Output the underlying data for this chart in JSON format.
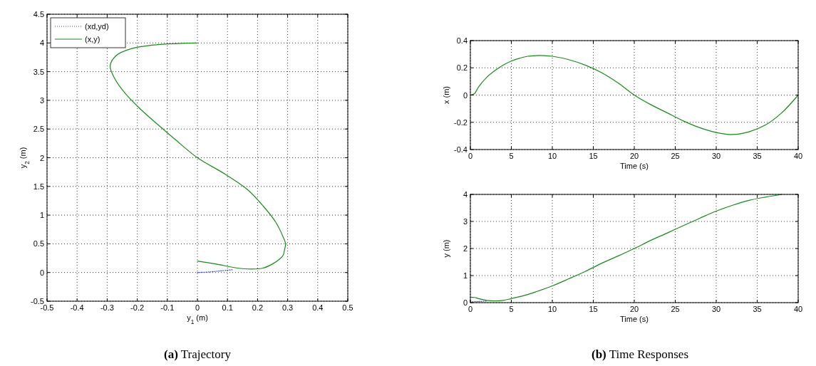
{
  "chart_data": [
    {
      "type": "line",
      "xlabel": "y$_{1}$ (m)",
      "ylabel": "y$_{2}$ (m)",
      "xlim": [
        -0.5,
        0.5
      ],
      "ylim": [
        -0.5,
        4.5
      ],
      "xticks": [
        -0.5,
        -0.4,
        -0.3,
        -0.2,
        -0.1,
        0,
        0.1,
        0.2,
        0.3,
        0.4,
        0.5
      ],
      "yticks": [
        -0.5,
        0,
        0.5,
        1,
        1.5,
        2,
        2.5,
        3,
        3.5,
        4,
        4.5
      ],
      "grid": true,
      "legend": "top left",
      "annotations": [
        "(a) Trajectory"
      ],
      "series": [
        {
          "name": "(xd,yd)",
          "color": "#3a3ad0",
          "line_style": "dotted",
          "x": [
            0,
            0.04,
            0.08,
            0.12
          ],
          "values": [
            0,
            0.01,
            0.03,
            0.05
          ]
        },
        {
          "name": "(x,y)",
          "color": "#1a8a1a",
          "line_style": "solid",
          "x": [
            0,
            0.06,
            0.13,
            0.18,
            0.22,
            0.25,
            0.27,
            0.285,
            0.29,
            0.293,
            0.285,
            0.26,
            0.22,
            0.165,
            0.09,
            0,
            -0.07,
            -0.13,
            -0.19,
            -0.24,
            -0.275,
            -0.29,
            -0.27,
            -0.22,
            -0.13,
            0
          ],
          "values": [
            0.2,
            0.15,
            0.08,
            0.06,
            0.08,
            0.15,
            0.22,
            0.3,
            0.4,
            0.5,
            0.62,
            0.88,
            1.15,
            1.45,
            1.72,
            2.0,
            2.3,
            2.57,
            2.85,
            3.12,
            3.38,
            3.6,
            3.78,
            3.9,
            3.97,
            4.0
          ]
        }
      ]
    },
    {
      "type": "line",
      "xlabel": "Time (s)",
      "ylabel": "x (m)",
      "xlim": [
        0,
        40
      ],
      "ylim": [
        -0.4,
        0.4
      ],
      "xticks": [
        0,
        5,
        10,
        15,
        20,
        25,
        30,
        35,
        40
      ],
      "yticks": [
        -0.4,
        -0.2,
        0,
        0.2,
        0.4
      ],
      "grid": true,
      "series": [
        {
          "color": "#1a8a1a",
          "line_style": "solid",
          "x": [
            0,
            0.5,
            1,
            2,
            3,
            4,
            5,
            6,
            7,
            8,
            9,
            10,
            12,
            14,
            16,
            18,
            20,
            22,
            24,
            26,
            28,
            30,
            32,
            34,
            36,
            38,
            40
          ],
          "values": [
            0,
            0.01,
            0.06,
            0.13,
            0.18,
            0.22,
            0.25,
            0.27,
            0.285,
            0.29,
            0.29,
            0.285,
            0.26,
            0.22,
            0.165,
            0.09,
            0,
            -0.07,
            -0.13,
            -0.19,
            -0.24,
            -0.275,
            -0.29,
            -0.27,
            -0.22,
            -0.13,
            0
          ]
        }
      ]
    },
    {
      "type": "line",
      "xlabel": "Time (s)",
      "ylabel": "y (m)",
      "xlim": [
        0,
        40
      ],
      "ylim": [
        0,
        4
      ],
      "xticks": [
        0,
        5,
        10,
        15,
        20,
        25,
        30,
        35,
        40
      ],
      "yticks": [
        0,
        1,
        2,
        3,
        4
      ],
      "grid": true,
      "annotations": [
        "(b) Time Responses"
      ],
      "series": [
        {
          "color": "#3a3ad0",
          "line_style": "dotted",
          "x": [
            0,
            1,
            2
          ],
          "values": [
            0.03,
            0.04,
            0.06
          ]
        },
        {
          "color": "#1a8a1a",
          "line_style": "solid",
          "x": [
            0,
            0.5,
            1,
            2,
            3,
            4,
            5,
            6,
            7,
            8,
            10,
            12,
            14,
            16,
            18,
            20,
            22,
            24,
            26,
            28,
            30,
            32,
            34,
            36,
            38
          ],
          "values": [
            0.2,
            0.19,
            0.15,
            0.08,
            0.06,
            0.08,
            0.15,
            0.22,
            0.3,
            0.4,
            0.62,
            0.88,
            1.15,
            1.45,
            1.72,
            2.0,
            2.3,
            2.57,
            2.85,
            3.12,
            3.38,
            3.6,
            3.78,
            3.9,
            4.0
          ]
        }
      ]
    }
  ]
}
